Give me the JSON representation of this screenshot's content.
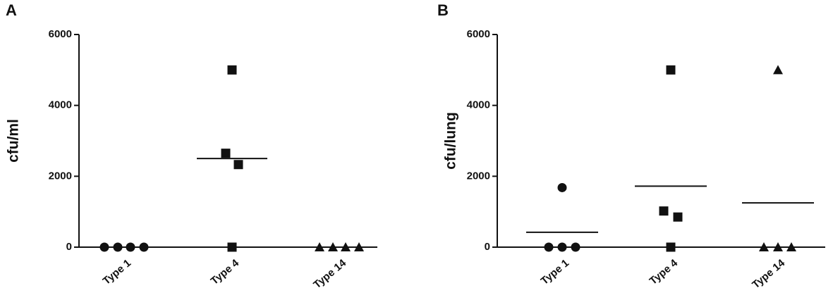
{
  "chart_data": [
    {
      "type": "scatter",
      "panel": "A",
      "y_label": "cfu/ml",
      "categories": [
        "Type 1",
        "Type 4",
        "Type 14"
      ],
      "markers": [
        "circle",
        "square",
        "triangle"
      ],
      "groups": [
        [
          0,
          0,
          0,
          0
        ],
        [
          5000,
          2650,
          2330,
          0
        ],
        [
          0,
          0,
          0,
          0
        ]
      ],
      "summary": [
        0,
        2500,
        0
      ],
      "ylim": [
        0,
        6000
      ],
      "yticks": [
        0,
        2000,
        4000,
        6000
      ],
      "color": "#111111"
    },
    {
      "type": "scatter",
      "panel": "B",
      "y_label": "cfu/lung",
      "categories": [
        "Type 1",
        "Type 4",
        "Type 14"
      ],
      "markers": [
        "circle",
        "square",
        "triangle"
      ],
      "groups": [
        [
          1680,
          0,
          0,
          0
        ],
        [
          5000,
          1020,
          850,
          0
        ],
        [
          5000,
          0,
          0,
          0
        ]
      ],
      "summary": [
        420,
        1720,
        1250
      ],
      "ylim": [
        0,
        6000
      ],
      "yticks": [
        0,
        2000,
        4000,
        6000
      ],
      "color": "#111111"
    }
  ]
}
